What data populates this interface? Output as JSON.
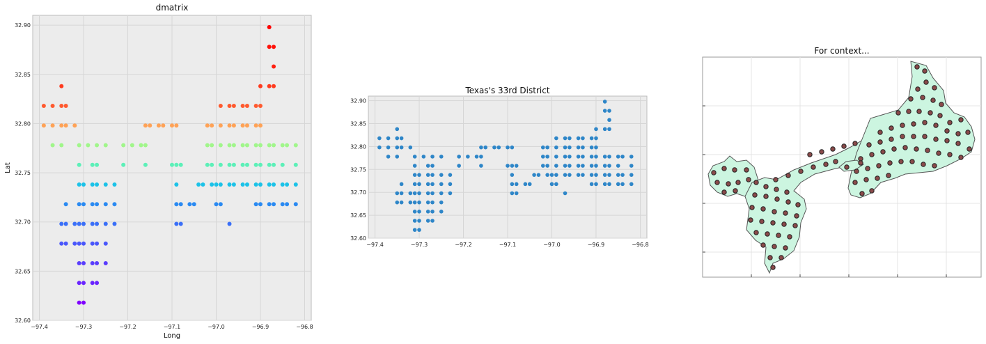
{
  "chart_data": [
    {
      "type": "scatter",
      "title": "dmatrix",
      "xlabel": "Long",
      "ylabel": "Lat",
      "xlim": [
        -97.415,
        -96.785
      ],
      "ylim": [
        32.6,
        32.91
      ],
      "xticks": [
        -97.4,
        -97.3,
        -97.2,
        -97.1,
        -97.0,
        -96.9,
        -96.8
      ],
      "xtick_labels": [
        "−97.4",
        "−97.3",
        "−97.2",
        "−97.1",
        "−97.0",
        "−96.9",
        "−96.8"
      ],
      "yticks": [
        32.6,
        32.65,
        32.7,
        32.75,
        32.8,
        32.85,
        32.9
      ],
      "ytick_labels": [
        "32.60",
        "32.65",
        "32.70",
        "32.75",
        "32.80",
        "32.85",
        "32.90"
      ],
      "grid": true,
      "color_by_row": [
        {
          "lat": 32.618,
          "color": "#8000ff",
          "lons": [
            -97.31,
            -97.3
          ]
        },
        {
          "lat": 32.638,
          "color": "#6a24ff",
          "lons": [
            -97.31,
            -97.3,
            -97.28,
            -97.27
          ]
        },
        {
          "lat": 32.658,
          "color": "#5a3dfd",
          "lons": [
            -97.31,
            -97.3,
            -97.28,
            -97.27,
            -97.25
          ]
        },
        {
          "lat": 32.678,
          "color": "#4a57fb",
          "lons": [
            -97.35,
            -97.34,
            -97.32,
            -97.31,
            -97.3,
            -97.28,
            -97.27,
            -97.25
          ]
        },
        {
          "lat": 32.698,
          "color": "#3a6ff8",
          "lons": [
            -97.35,
            -97.34,
            -97.32,
            -97.31,
            -97.3,
            -97.28,
            -97.27,
            -97.25,
            -97.23,
            -97.09,
            -97.08,
            -96.97
          ]
        },
        {
          "lat": 32.718,
          "color": "#2a8af2",
          "lons": [
            -97.34,
            -97.31,
            -97.3,
            -97.28,
            -97.27,
            -97.25,
            -97.23,
            -97.09,
            -97.08,
            -97.06,
            -97.05,
            -97.0,
            -96.99,
            -96.91,
            -96.9,
            -96.88,
            -96.87,
            -96.85,
            -96.84,
            -96.82
          ]
        },
        {
          "lat": 32.738,
          "color": "#1bc2e8",
          "lons": [
            -97.31,
            -97.3,
            -97.28,
            -97.27,
            -97.25,
            -97.23,
            -97.09,
            -97.04,
            -97.03,
            -97.01,
            -97.0,
            -96.99,
            -96.97,
            -96.96,
            -96.94,
            -96.93,
            -96.91,
            -96.9,
            -96.88,
            -96.87,
            -96.85,
            -96.84,
            -96.82
          ]
        },
        {
          "lat": 32.758,
          "color": "#5cf0b8",
          "lons": [
            -97.31,
            -97.28,
            -97.27,
            -97.21,
            -97.16,
            -97.1,
            -97.09,
            -97.08,
            -97.02,
            -97.01,
            -96.99,
            -96.97,
            -96.96,
            -96.94,
            -96.93,
            -96.91,
            -96.9,
            -96.88,
            -96.87,
            -96.85,
            -96.82
          ]
        },
        {
          "lat": 32.778,
          "color": "#a0f68a",
          "lons": [
            -97.37,
            -97.35,
            -97.31,
            -97.29,
            -97.27,
            -97.25,
            -97.21,
            -97.19,
            -97.17,
            -97.16,
            -97.02,
            -97.01,
            -96.99,
            -96.97,
            -96.96,
            -96.94,
            -96.93,
            -96.91,
            -96.9,
            -96.88,
            -96.87,
            -96.85,
            -96.84,
            -96.82
          ]
        },
        {
          "lat": 32.798,
          "color": "#ffa256",
          "lons": [
            -97.39,
            -97.37,
            -97.35,
            -97.34,
            -97.32,
            -97.16,
            -97.15,
            -97.13,
            -97.12,
            -97.1,
            -97.09,
            -97.02,
            -97.01,
            -96.99,
            -96.97,
            -96.96,
            -96.94,
            -96.93,
            -96.91,
            -96.9
          ]
        },
        {
          "lat": 32.818,
          "color": "#ff5a2f",
          "lons": [
            -97.39,
            -97.37,
            -97.35,
            -97.34,
            -96.99,
            -96.97,
            -96.96,
            -96.94,
            -96.93,
            -96.91,
            -96.9
          ]
        },
        {
          "lat": 32.838,
          "color": "#ff3a1e",
          "lons": [
            -97.35,
            -96.9,
            -96.88,
            -96.87
          ]
        },
        {
          "lat": 32.858,
          "color": "#ff2010",
          "lons": [
            -96.87
          ]
        },
        {
          "lat": 32.878,
          "color": "#ff1008",
          "lons": [
            -96.88,
            -96.87
          ]
        },
        {
          "lat": 32.898,
          "color": "#ff0000",
          "lons": [
            -96.88
          ]
        }
      ]
    },
    {
      "type": "scatter",
      "title": "Texas's 33rd District",
      "xlabel": "",
      "ylabel": "",
      "xlim": [
        -97.415,
        -96.785
      ],
      "ylim": [
        32.6,
        32.91
      ],
      "xticks": [
        -97.4,
        -97.3,
        -97.2,
        -97.1,
        -97.0,
        -96.9,
        -96.8
      ],
      "xtick_labels": [
        "−97.4",
        "−97.3",
        "−97.2",
        "−97.1",
        "−97.0",
        "−96.9",
        "−96.8"
      ],
      "yticks": [
        32.6,
        32.65,
        32.7,
        32.75,
        32.8,
        32.85,
        32.9
      ],
      "ytick_labels": [
        "32.60",
        "32.65",
        "32.70",
        "32.75",
        "32.80",
        "32.85",
        "32.90"
      ],
      "grid": true,
      "point_color": "#2e86c8"
    },
    {
      "type": "map",
      "title": "For context...",
      "fill_color": "#ccf5e0",
      "marker_color": "#8a4a4a",
      "grid": true
    }
  ]
}
